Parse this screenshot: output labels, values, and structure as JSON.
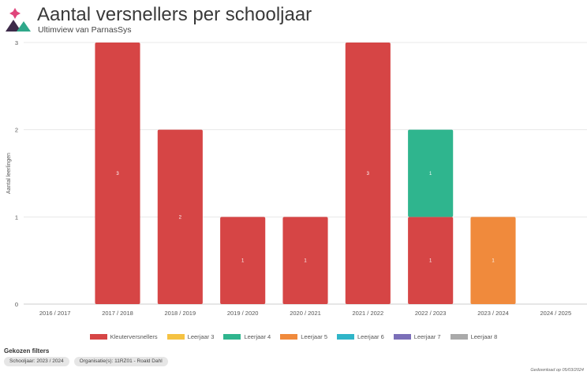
{
  "header": {
    "title": "Aantal versnellers per schooljaar",
    "subtitle": "Ultimview van ParnasSys"
  },
  "colors": {
    "logo_pink": "#e0457b",
    "logo_dark": "#3d2b4a",
    "logo_green": "#2fa88a"
  },
  "chart_data": {
    "type": "bar",
    "stacked": true,
    "ylabel": "Aantal leerlingen",
    "xlabel": "",
    "ylim": [
      0,
      3
    ],
    "yticks": [
      0,
      1,
      2,
      3
    ],
    "grid": true,
    "legend_position": "bottom",
    "categories": [
      "2016 / 2017",
      "2017 / 2018",
      "2018 / 2019",
      "2019 / 2020",
      "2020 / 2021",
      "2021 / 2022",
      "2022 / 2023",
      "2023 / 2024",
      "2024 / 2025"
    ],
    "series": [
      {
        "name": "Kleuterversnellers",
        "color": "#d64545",
        "values": [
          0,
          3,
          2,
          1,
          1,
          3,
          1,
          0,
          0
        ]
      },
      {
        "name": "Leerjaar 3",
        "color": "#f5c242",
        "values": [
          0,
          0,
          0,
          0,
          0,
          0,
          0,
          0,
          0
        ]
      },
      {
        "name": "Leerjaar 4",
        "color": "#2fb58e",
        "values": [
          0,
          0,
          0,
          0,
          0,
          0,
          1,
          0,
          0
        ]
      },
      {
        "name": "Leerjaar 5",
        "color": "#f08a3c",
        "values": [
          0,
          0,
          0,
          0,
          0,
          0,
          0,
          1,
          0
        ]
      },
      {
        "name": "Leerjaar 6",
        "color": "#2fb5c8",
        "values": [
          0,
          0,
          0,
          0,
          0,
          0,
          0,
          0,
          0
        ]
      },
      {
        "name": "Leerjaar 7",
        "color": "#7b6fb8",
        "values": [
          0,
          0,
          0,
          0,
          0,
          0,
          0,
          0,
          0
        ]
      },
      {
        "name": "Leerjaar 8",
        "color": "#aaaaaa",
        "values": [
          0,
          0,
          0,
          0,
          0,
          0,
          0,
          0,
          0
        ]
      }
    ]
  },
  "filters": {
    "title": "Gekozen filters",
    "chips": [
      "Schooljaar: 2023 / 2024",
      "Organisatie(s): 11RZ01 - Roald Dahl"
    ]
  },
  "footer": {
    "download_note": "Gedownload op 05/03/2024"
  }
}
